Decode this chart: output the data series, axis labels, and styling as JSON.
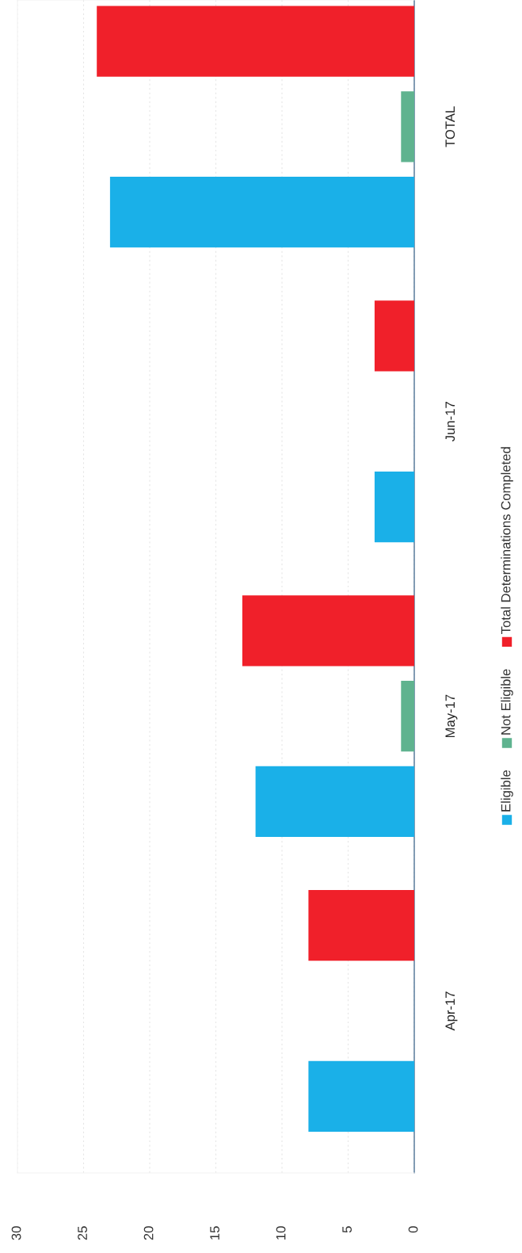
{
  "chart_data": {
    "type": "bar",
    "orientation": "horizontal",
    "categories": [
      "TOTAL",
      "Jun-17",
      "May-17",
      "Apr-17"
    ],
    "series": [
      {
        "name": "Eligible",
        "color": "#1ab0e8",
        "values": [
          23,
          3,
          12,
          8
        ]
      },
      {
        "name": "Not Eligible",
        "color": "#5fb38f",
        "values": [
          1,
          0,
          1,
          0
        ]
      },
      {
        "name": "Total Determinations Completed",
        "color": "#f0202a",
        "values": [
          24,
          3,
          13,
          8
        ]
      }
    ],
    "xlim": [
      30,
      0
    ],
    "xticks": [
      0,
      5,
      10,
      15,
      20,
      25,
      30
    ],
    "grid": "x",
    "legend": "right"
  }
}
